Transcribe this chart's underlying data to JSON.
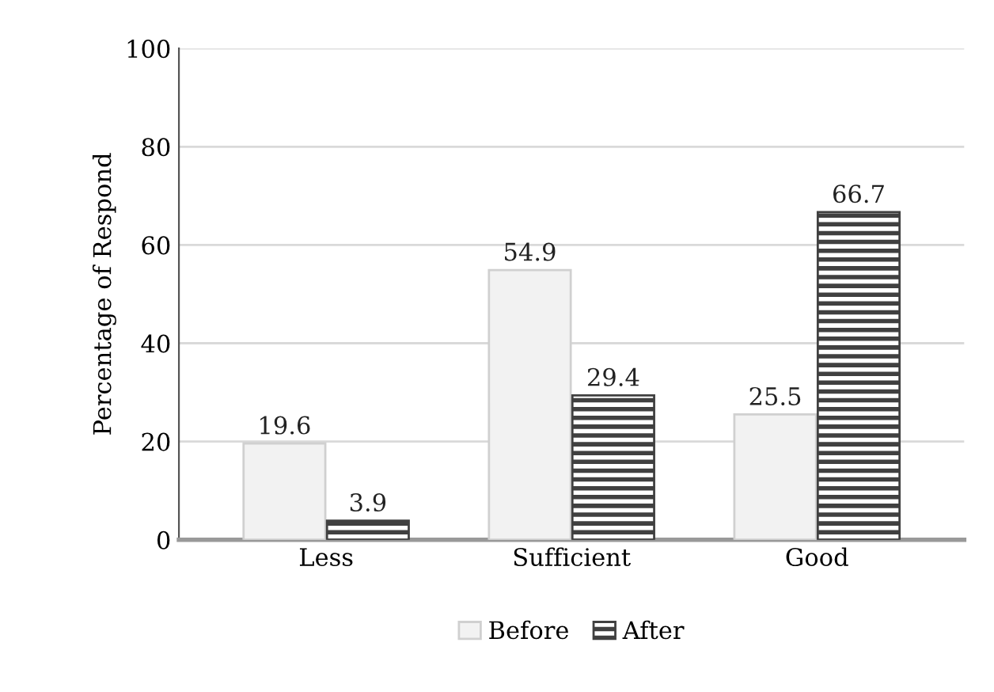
{
  "chart_data": {
    "type": "bar",
    "ylabel": "Percentage of Respond",
    "categories": [
      "Less",
      "Sufficient",
      "Good"
    ],
    "series": [
      {
        "name": "Before",
        "color": "#f2f2f2",
        "values": [
          19.6,
          54.9,
          25.5
        ]
      },
      {
        "name": "After",
        "color": "#404040",
        "values": [
          3.9,
          29.4,
          66.7
        ]
      }
    ],
    "ylim": [
      0,
      100
    ],
    "yticks": [
      0,
      20,
      40,
      60,
      80,
      100
    ],
    "grid": "y",
    "legend": "bottom",
    "data_labels": true
  }
}
